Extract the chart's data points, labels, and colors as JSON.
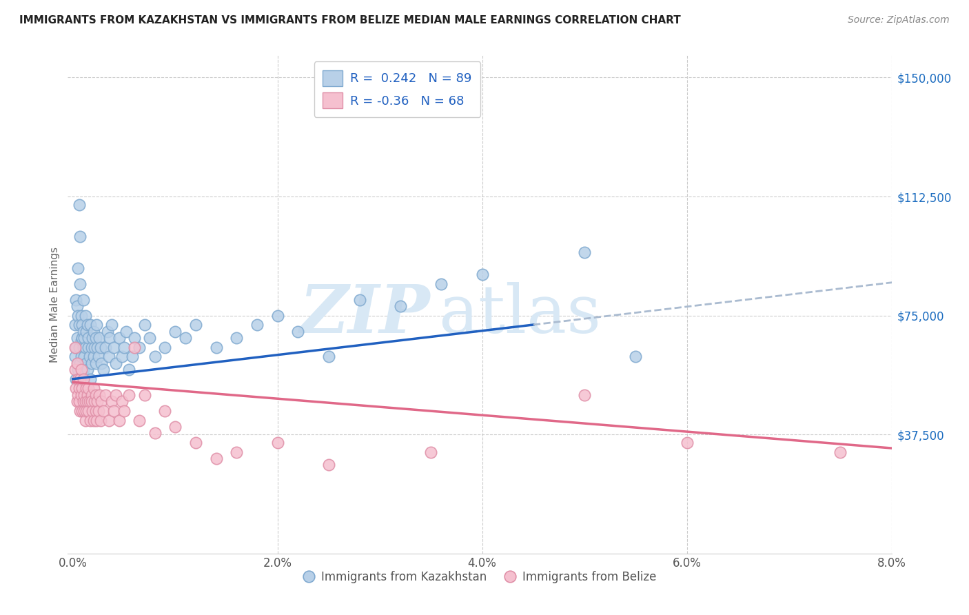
{
  "title": "IMMIGRANTS FROM KAZAKHSTAN VS IMMIGRANTS FROM BELIZE MEDIAN MALE EARNINGS CORRELATION CHART",
  "source": "Source: ZipAtlas.com",
  "xlabel_ticks": [
    "0.0%",
    "2.0%",
    "4.0%",
    "6.0%",
    "8.0%"
  ],
  "xlabel_tick_vals": [
    0.0,
    2.0,
    4.0,
    6.0,
    8.0
  ],
  "ylabel": "Median Male Earnings",
  "ylabel_right_ticks": [
    "$150,000",
    "$112,500",
    "$75,000",
    "$37,500"
  ],
  "ylabel_right_vals": [
    150000,
    112500,
    75000,
    37500
  ],
  "ylim": [
    0,
    157000
  ],
  "xlim": [
    -0.05,
    8.0
  ],
  "kaz_R": 0.242,
  "kaz_N": 89,
  "bel_R": -0.36,
  "bel_N": 68,
  "kaz_color": "#b8d0e8",
  "kaz_edge_color": "#80aad0",
  "bel_color": "#f5c0cf",
  "bel_edge_color": "#e090a8",
  "trend_kaz_color": "#2060c0",
  "trend_bel_color": "#e06888",
  "trend_dash_color": "#aabbd0",
  "watermark_color": "#d8e8f5",
  "legend_text_color": "#2060c0",
  "title_color": "#222222",
  "source_color": "#888888",
  "kaz_trend_intercept": 55000,
  "kaz_trend_slope": 3800,
  "bel_trend_intercept": 54000,
  "bel_trend_slope": -2600,
  "kaz_solid_end": 4.5,
  "kaz_scatter": {
    "x": [
      0.02,
      0.02,
      0.03,
      0.03,
      0.03,
      0.04,
      0.04,
      0.05,
      0.05,
      0.05,
      0.05,
      0.06,
      0.06,
      0.06,
      0.07,
      0.07,
      0.07,
      0.08,
      0.08,
      0.08,
      0.08,
      0.09,
      0.09,
      0.1,
      0.1,
      0.1,
      0.1,
      0.11,
      0.11,
      0.12,
      0.12,
      0.13,
      0.13,
      0.14,
      0.14,
      0.15,
      0.15,
      0.16,
      0.17,
      0.17,
      0.18,
      0.18,
      0.19,
      0.2,
      0.2,
      0.21,
      0.22,
      0.22,
      0.23,
      0.24,
      0.25,
      0.26,
      0.27,
      0.28,
      0.3,
      0.32,
      0.34,
      0.35,
      0.36,
      0.38,
      0.4,
      0.42,
      0.45,
      0.48,
      0.5,
      0.52,
      0.55,
      0.58,
      0.6,
      0.65,
      0.7,
      0.75,
      0.8,
      0.9,
      1.0,
      1.1,
      1.2,
      1.4,
      1.6,
      1.8,
      2.0,
      2.2,
      2.5,
      2.8,
      3.2,
      3.6,
      4.0,
      5.0,
      5.5
    ],
    "y": [
      62000,
      72000,
      65000,
      80000,
      55000,
      68000,
      78000,
      75000,
      60000,
      58000,
      90000,
      110000,
      65000,
      72000,
      100000,
      85000,
      60000,
      67000,
      62000,
      75000,
      55000,
      68000,
      72000,
      65000,
      70000,
      58000,
      80000,
      62000,
      68000,
      75000,
      65000,
      60000,
      70000,
      58000,
      72000,
      65000,
      68000,
      62000,
      55000,
      72000,
      65000,
      60000,
      68000,
      70000,
      62000,
      65000,
      68000,
      60000,
      72000,
      65000,
      62000,
      68000,
      65000,
      60000,
      58000,
      65000,
      70000,
      62000,
      68000,
      72000,
      65000,
      60000,
      68000,
      62000,
      65000,
      70000,
      58000,
      62000,
      68000,
      65000,
      72000,
      68000,
      62000,
      65000,
      70000,
      68000,
      72000,
      65000,
      68000,
      72000,
      75000,
      70000,
      62000,
      80000,
      78000,
      85000,
      88000,
      95000,
      62000
    ]
  },
  "bel_scatter": {
    "x": [
      0.02,
      0.02,
      0.03,
      0.04,
      0.04,
      0.05,
      0.05,
      0.06,
      0.06,
      0.07,
      0.07,
      0.08,
      0.08,
      0.09,
      0.09,
      0.1,
      0.1,
      0.11,
      0.11,
      0.12,
      0.12,
      0.13,
      0.13,
      0.14,
      0.14,
      0.15,
      0.15,
      0.16,
      0.17,
      0.18,
      0.18,
      0.19,
      0.2,
      0.2,
      0.21,
      0.22,
      0.22,
      0.23,
      0.24,
      0.25,
      0.26,
      0.27,
      0.28,
      0.3,
      0.32,
      0.35,
      0.38,
      0.4,
      0.42,
      0.45,
      0.48,
      0.5,
      0.55,
      0.6,
      0.65,
      0.7,
      0.8,
      0.9,
      1.0,
      1.2,
      1.4,
      1.6,
      2.0,
      2.5,
      3.5,
      5.0,
      6.0,
      7.5
    ],
    "y": [
      58000,
      65000,
      52000,
      48000,
      60000,
      55000,
      50000,
      52000,
      48000,
      55000,
      45000,
      50000,
      58000,
      45000,
      52000,
      48000,
      55000,
      45000,
      50000,
      48000,
      42000,
      52000,
      45000,
      50000,
      48000,
      45000,
      52000,
      48000,
      42000,
      50000,
      48000,
      45000,
      52000,
      42000,
      48000,
      45000,
      50000,
      42000,
      48000,
      45000,
      50000,
      42000,
      48000,
      45000,
      50000,
      42000,
      48000,
      45000,
      50000,
      42000,
      48000,
      45000,
      50000,
      65000,
      42000,
      50000,
      38000,
      45000,
      40000,
      35000,
      30000,
      32000,
      35000,
      28000,
      32000,
      50000,
      35000,
      32000
    ]
  }
}
